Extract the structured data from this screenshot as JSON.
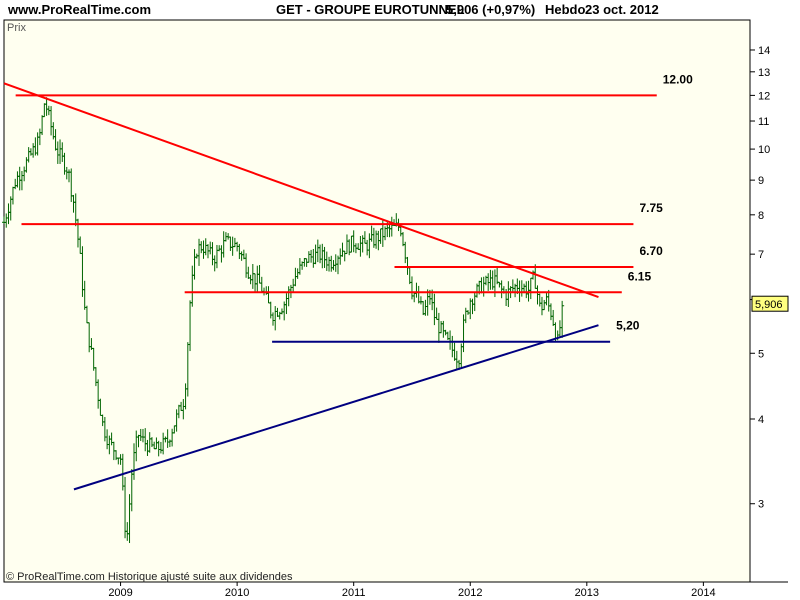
{
  "header": {
    "site": "www.ProRealTime.com",
    "title": "GET - GROUPE EUROTUNNEL",
    "quote": "5,906 (+0,97%)",
    "period": "Hebdo",
    "date": "23 oct. 2012"
  },
  "panel_label": "Prix",
  "footer_note": "© ProRealTime.com Historique ajusté suite aux dividendes",
  "colors": {
    "background": "#fffff0",
    "bars": "#006400",
    "resistance": "#ff0000",
    "support": "#000080",
    "last_price_badge": "#ffff80"
  },
  "chart_data": {
    "type": "line",
    "title": "GET - GROUPE EUROTUNNEL",
    "xlabel": "",
    "ylabel": "Prix",
    "y_scale": "log",
    "ylim": [
      2.3,
      15.5
    ],
    "xlim": [
      2008.0,
      2014.4
    ],
    "grid": false,
    "y_ticks": [
      3,
      4,
      5,
      6,
      7,
      8,
      9,
      10,
      11,
      12,
      13,
      14
    ],
    "y_tick_labels": [
      "3",
      "4",
      "5",
      "",
      "7",
      "8",
      "9",
      "10",
      "11",
      "12",
      "13",
      "14"
    ],
    "x_ticks": [
      2009,
      2010,
      2011,
      2012,
      2013,
      2014
    ],
    "x_tick_labels": [
      "2009",
      "2010",
      "2011",
      "2012",
      "2013",
      "2014"
    ],
    "last_price": 5.906,
    "last_price_label": "5,906",
    "series": [
      {
        "x": [
          2008.0,
          2008.1,
          2008.2,
          2008.3,
          2008.35,
          2008.45,
          2008.55,
          2008.6,
          2008.65,
          2008.7,
          2008.75,
          2008.8,
          2008.85,
          2008.9,
          2008.95,
          2009.0,
          2009.05,
          2009.1,
          2009.15,
          2009.2,
          2009.3,
          2009.4,
          2009.5,
          2009.55,
          2009.6,
          2009.65,
          2009.7,
          2009.8,
          2009.9,
          2010.0,
          2010.1,
          2010.2,
          2010.3,
          2010.4,
          2010.5,
          2010.6,
          2010.7,
          2010.8,
          2010.9,
          2011.0,
          2011.1,
          2011.2,
          2011.3,
          2011.4,
          2011.5,
          2011.55,
          2011.6,
          2011.65,
          2011.7,
          2011.8,
          2011.9,
          2011.95,
          2012.0,
          2012.1,
          2012.2,
          2012.3,
          2012.4,
          2012.5,
          2012.55,
          2012.6,
          2012.65,
          2012.7,
          2012.75,
          2012.8
        ],
        "y": [
          7.8,
          9.0,
          9.6,
          10.3,
          11.8,
          10.0,
          9.3,
          8.3,
          7.0,
          5.6,
          5.0,
          4.4,
          3.9,
          3.7,
          3.6,
          3.5,
          2.6,
          3.4,
          3.8,
          3.7,
          3.6,
          3.7,
          4.1,
          4.3,
          6.1,
          7.1,
          7.2,
          6.9,
          7.3,
          7.2,
          6.6,
          6.3,
          5.7,
          5.9,
          6.5,
          6.9,
          7.0,
          6.8,
          7.1,
          7.3,
          7.2,
          7.4,
          7.6,
          7.7,
          6.2,
          6.0,
          5.7,
          6.1,
          5.6,
          5.2,
          4.9,
          5.6,
          6.0,
          6.3,
          6.4,
          6.1,
          6.3,
          6.2,
          6.5,
          5.8,
          6.0,
          5.7,
          5.2,
          5.906
        ]
      }
    ],
    "horizontal_levels": [
      {
        "value": 12.0,
        "label": "12.00",
        "x_start": 2008.1,
        "x_end": 2013.6,
        "color": "#ff0000"
      },
      {
        "value": 7.75,
        "label": "7.75",
        "x_start": 2008.15,
        "x_end": 2013.4,
        "color": "#ff0000"
      },
      {
        "value": 6.7,
        "label": "6.70",
        "x_start": 2011.35,
        "x_end": 2013.4,
        "color": "#ff0000"
      },
      {
        "value": 6.15,
        "label": "6.15",
        "x_start": 2009.55,
        "x_end": 2013.3,
        "color": "#ff0000"
      },
      {
        "value": 5.2,
        "label": "5,20",
        "x_start": 2010.3,
        "x_end": 2013.2,
        "color": "#000080"
      }
    ],
    "trendlines": [
      {
        "name": "resistance",
        "x": [
          2008.0,
          2013.1
        ],
        "y": [
          12.5,
          6.05
        ],
        "color": "#ff0000"
      },
      {
        "name": "support",
        "x": [
          2008.6,
          2013.1
        ],
        "y": [
          3.15,
          5.5
        ],
        "color": "#000080"
      }
    ]
  }
}
